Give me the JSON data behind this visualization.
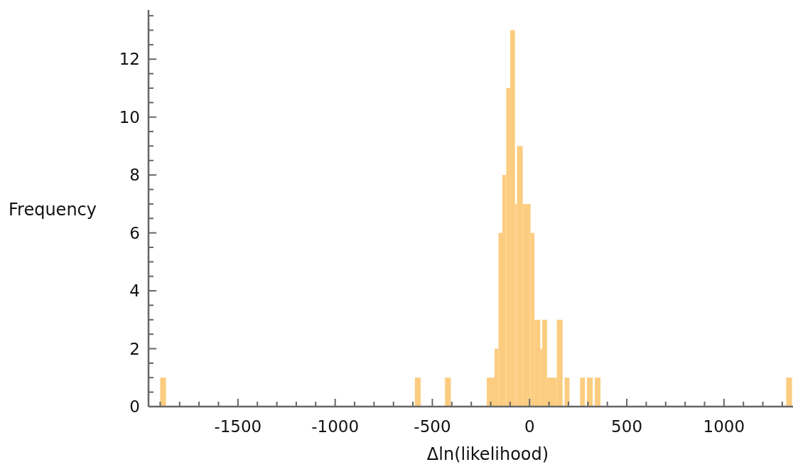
{
  "chart_data": {
    "type": "histogram",
    "xlabel": "Δln(likelihood)",
    "ylabel": "Frequency",
    "color": "#fccd80",
    "bins": [
      -1900,
      -1870,
      -590,
      -560,
      -435,
      -405,
      -220,
      -180,
      -160,
      -140,
      -120,
      -100,
      -75,
      -65,
      -35,
      5,
      25,
      55,
      65,
      90,
      140,
      170,
      180,
      205,
      260,
      285,
      295,
      325,
      335,
      365,
      1320,
      1350
    ],
    "values": [
      1,
      0,
      1,
      0,
      1,
      0,
      1,
      2,
      6,
      8,
      11,
      13,
      7,
      9,
      7,
      6,
      3,
      2,
      3,
      1,
      3,
      0,
      1,
      0,
      1,
      0,
      1,
      0,
      1,
      0,
      1
    ],
    "xlim": [
      -1960,
      1355
    ],
    "ylim": [
      0,
      13.7
    ],
    "xticks": [
      {
        "value": -1900,
        "label": null
      },
      {
        "value": -1800,
        "label": null
      },
      {
        "value": -1700,
        "label": null
      },
      {
        "value": -1600,
        "label": null
      },
      -1500,
      {
        "value": -1400,
        "label": null
      },
      {
        "value": -1300,
        "label": null
      },
      {
        "value": -1200,
        "label": null
      },
      {
        "value": -1100,
        "label": null
      },
      -1000,
      {
        "value": -900,
        "label": null
      },
      {
        "value": -800,
        "label": null
      },
      {
        "value": -700,
        "label": null
      },
      {
        "value": -600,
        "label": null
      },
      -500,
      {
        "value": -400,
        "label": null
      },
      {
        "value": -300,
        "label": null
      },
      {
        "value": -200,
        "label": null
      },
      {
        "value": -100,
        "label": null
      },
      0,
      {
        "value": 100,
        "label": null
      },
      {
        "value": 200,
        "label": null
      },
      {
        "value": 300,
        "label": null
      },
      {
        "value": 400,
        "label": null
      },
      500,
      {
        "value": 600,
        "label": null
      },
      {
        "value": 700,
        "label": null
      },
      {
        "value": 800,
        "label": null
      },
      {
        "value": 900,
        "label": null
      },
      1000,
      {
        "value": 1100,
        "label": null
      },
      {
        "value": 1200,
        "label": null
      },
      {
        "value": 1300,
        "label": null
      }
    ],
    "yticks": [
      0,
      {
        "value": 0.5,
        "label": null
      },
      {
        "value": 1,
        "label": null
      },
      {
        "value": 1.5,
        "label": null
      },
      2,
      {
        "value": 2.5,
        "label": null
      },
      {
        "value": 3,
        "label": null
      },
      {
        "value": 3.5,
        "label": null
      },
      4,
      {
        "value": 4.5,
        "label": null
      },
      {
        "value": 5,
        "label": null
      },
      {
        "value": 5.5,
        "label": null
      },
      6,
      {
        "value": 6.5,
        "label": null
      },
      {
        "value": 7,
        "label": null
      },
      {
        "value": 7.5,
        "label": null
      },
      8,
      {
        "value": 8.5,
        "label": null
      },
      {
        "value": 9,
        "label": null
      },
      {
        "value": 9.5,
        "label": null
      },
      10,
      {
        "value": 10.5,
        "label": null
      },
      {
        "value": 11,
        "label": null
      },
      {
        "value": 11.5,
        "label": null
      },
      12,
      {
        "value": 12.5,
        "label": null
      },
      {
        "value": 13,
        "label": null
      },
      {
        "value": 13.5,
        "label": null
      }
    ],
    "grid": false
  }
}
